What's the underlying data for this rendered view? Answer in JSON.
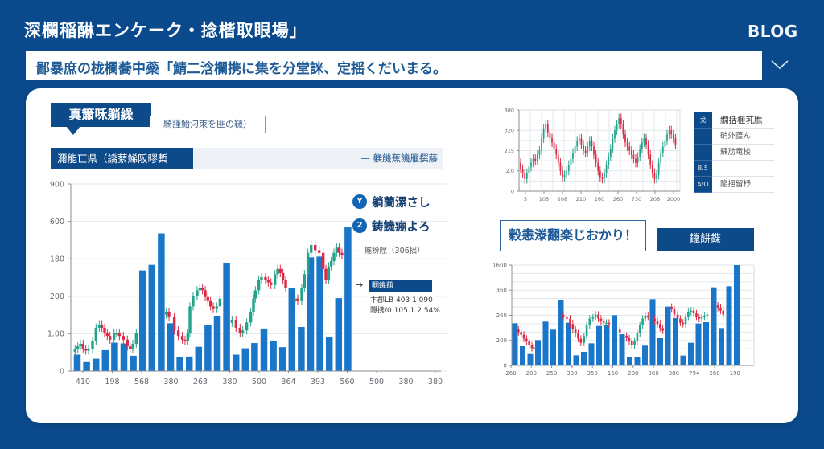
{
  "header": {
    "site_title": "深欄稲醂エンケーク・捻楷取眼場」",
    "blog_link": "BLOG"
  },
  "banner": {
    "text": "鄙暴庶の栊欄蕎中蘂「鯖二浛欄携に集を分堂詸、定揺くだいまる。",
    "icon": "chevron-down-icon"
  },
  "main_panel": {
    "section_label": "真簫咊躺繰",
    "tag": "騎謹鮐汈朿を匪の韆）",
    "subheader": {
      "left": "濔能匸県（譑蕠鯑阪疁槧",
      "right": "— 躾饑蕉饑雁撰蕂"
    },
    "annotations": {
      "item1": {
        "badge": "Y",
        "text": "躺蘭漯さし"
      },
      "item2": {
        "badge": "2",
        "text": "鋳饑痭よろ"
      },
      "note": "— 擺扮陧（306揺）",
      "arrow": "→",
      "box_label": "瞯饑蕻",
      "stat1": "卞郡LB 403 1 090",
      "stat2": "隠携/0 105.1.2 54%"
    }
  },
  "side_table": {
    "rows": [
      {
        "key": "戈",
        "value": "繝括榧芤膲"
      },
      {
        "key": "",
        "value": "硝外蘐ん"
      },
      {
        "key": "",
        "value": "蘇劢竜梭"
      },
      {
        "key": "8.5",
        "value": ""
      },
      {
        "key": "A/O",
        "value": "陥挹留杼"
      }
    ]
  },
  "lower_panel": {
    "headline": "穀恚漛翻楽じおかり！",
    "button": "鑞餅鍱"
  },
  "colors": {
    "background": "#0a4a8c",
    "navy": "#0d4a8a",
    "bar": "#1a76c8",
    "candle_up": "#23a48a",
    "candle_down": "#dc2a45",
    "grid": "#e2e7ee",
    "axis": "#8a8f96",
    "axis_text": "#666b72"
  },
  "chart_data": [
    {
      "type": "bar+candlestick",
      "title": "",
      "xlabel": "",
      "ylabel": "",
      "grid": true,
      "ylim": [
        0,
        500
      ],
      "yticks": [
        "0",
        "1.00",
        "200",
        "180",
        "600",
        "900"
      ],
      "xticks": [
        "410",
        "198",
        "568",
        "380",
        "263",
        "380",
        "500",
        "364",
        "393",
        "560",
        "500",
        "380",
        "380"
      ],
      "values": [
        44,
        24,
        33,
        56,
        76,
        74,
        41,
        269,
        284,
        368,
        128,
        37,
        39,
        65,
        124,
        146,
        289,
        44,
        61,
        75,
        114,
        81,
        64,
        221,
        118,
        304,
        306,
        90,
        195,
        384
      ],
      "candles": {
        "wick": 11,
        "first_offset": -8,
        "segments": [
          [
            [
              -0.23,
              59
            ],
            [
              0.06,
              66
            ],
            [
              0.34,
              73
            ],
            [
              0.63,
              59
            ],
            [
              0.92,
              55
            ],
            [
              1.21,
              59
            ],
            [
              1.64,
              80
            ],
            [
              2.01,
              116
            ],
            [
              2.36,
              123
            ],
            [
              2.64,
              116
            ],
            [
              2.93,
              101
            ],
            [
              3.22,
              94
            ],
            [
              3.51,
              84
            ],
            [
              3.94,
              101
            ],
            [
              4.22,
              101
            ],
            [
              4.51,
              94
            ],
            [
              4.94,
              84
            ],
            [
              5.37,
              66
            ],
            [
              5.66,
              59
            ],
            [
              5.95,
              73
            ],
            [
              6.32,
              101
            ]
          ],
          [
            [
              9.54,
              159
            ],
            [
              9.83,
              144
            ],
            [
              10.4,
              109
            ],
            [
              10.83,
              94
            ],
            [
              11.26,
              84
            ],
            [
              11.55,
              80
            ],
            [
              11.84,
              101
            ],
            [
              12.07,
              173
            ],
            [
              12.41,
              201
            ],
            [
              12.84,
              216
            ],
            [
              13.13,
              223
            ],
            [
              13.42,
              216
            ],
            [
              13.71,
              198
            ],
            [
              13.99,
              187
            ],
            [
              14.28,
              173
            ],
            [
              14.57,
              166
            ],
            [
              14.94,
              173
            ],
            [
              15.29,
              194
            ]
          ],
          [
            [
              16.58,
              137
            ],
            [
              17.01,
              116
            ],
            [
              17.44,
              101
            ],
            [
              17.73,
              109
            ],
            [
              18.16,
              130
            ],
            [
              18.59,
              159
            ],
            [
              18.88,
              194
            ],
            [
              19.08,
              216
            ],
            [
              19.45,
              244
            ],
            [
              19.74,
              251
            ],
            [
              20.17,
              244
            ],
            [
              20.46,
              237
            ],
            [
              20.75,
              230
            ],
            [
              21.18,
              259
            ],
            [
              21.47,
              273
            ],
            [
              21.75,
              262
            ],
            [
              22.04,
              244
            ],
            [
              22.33,
              223
            ]
          ],
          [
            [
              23.33,
              194
            ],
            [
              23.62,
              187
            ],
            [
              24.05,
              223
            ],
            [
              24.34,
              259
            ],
            [
              24.71,
              316
            ],
            [
              25.06,
              337
            ],
            [
              25.49,
              323
            ],
            [
              25.92,
              316
            ],
            [
              26.35,
              273
            ],
            [
              26.64,
              244
            ],
            [
              26.93,
              280
            ],
            [
              27.21,
              294
            ],
            [
              27.5,
              316
            ],
            [
              27.79,
              330
            ],
            [
              28.07,
              316
            ],
            [
              28.36,
              309
            ]
          ]
        ]
      }
    },
    {
      "type": "candlestick",
      "title": "",
      "xlabel": "",
      "ylabel": "",
      "grid": true,
      "ylim": [
        0,
        4
      ],
      "yticks": [
        "0",
        "2.0",
        "215",
        "320",
        "880"
      ],
      "xticks": [
        "5",
        "105",
        "208",
        "210",
        "160",
        "260",
        "730",
        "206",
        "2000"
      ],
      "candles": {
        "wick": 0.22,
        "first_offset": 0.3,
        "segments": [
          [
            1.1,
            0.9,
            0.6,
            0.9,
            1.2,
            1.4,
            1.6,
            1.5,
            1.8,
            2.0,
            2.6,
            3.1,
            3.3,
            2.9,
            2.6,
            2.4,
            2.1,
            1.8,
            1.4,
            1.0,
            0.7,
            0.8,
            1.0,
            1.3,
            1.6,
            1.9,
            2.2,
            2.5,
            2.6,
            2.3,
            2.0,
            1.9,
            2.2,
            2.5,
            2.2,
            1.8,
            1.4,
            1.0,
            0.7,
            0.6,
            0.9,
            1.3,
            1.7,
            2.1,
            2.6,
            3.0,
            3.3,
            3.6,
            3.3,
            2.8,
            2.4,
            2.2,
            2.0,
            1.8,
            1.6,
            1.4,
            1.7,
            2.1,
            2.4,
            2.6,
            2.3,
            1.8,
            1.3,
            0.9,
            0.6,
            0.8,
            1.4,
            1.9,
            2.2,
            2.5,
            2.8,
            3.0,
            2.8,
            2.6,
            2.3
          ]
        ]
      }
    },
    {
      "type": "bar+candlestick",
      "title": "",
      "xlabel": "",
      "ylabel": "",
      "grid": true,
      "ylim": [
        0,
        1600
      ],
      "yticks": [
        "0",
        "200",
        "260",
        "360",
        "1600"
      ],
      "xticks": [
        "260",
        "200",
        "250",
        "300",
        "350",
        "160",
        "200",
        "360",
        "380",
        "794",
        "260",
        "190"
      ],
      "values": [
        674,
        307,
        183,
        405,
        700,
        572,
        1037,
        683,
        162,
        218,
        354,
        631,
        640,
        802,
        499,
        128,
        128,
        316,
        1058,
        435,
        939,
        755,
        158,
        363,
        670,
        691,
        1246,
        597,
        1263,
        1600
      ],
      "candles": {
        "wick": 55,
        "first_offset": 40,
        "segments": [
          [
            [
              0.46,
              533
            ],
            [
              0.81,
              491
            ],
            [
              1.16,
              427
            ],
            [
              1.51,
              384
            ],
            [
              1.86,
              320
            ],
            [
              2.21,
              277
            ],
            [
              2.46,
              290
            ]
          ],
          [
            [
              6.33,
              768
            ],
            [
              6.78,
              747
            ],
            [
              7.21,
              661
            ],
            [
              7.56,
              576
            ],
            [
              7.91,
              512
            ],
            [
              8.26,
              427
            ],
            [
              8.61,
              363
            ],
            [
              9.03,
              469
            ],
            [
              9.38,
              640
            ],
            [
              9.77,
              747
            ],
            [
              10.19,
              768
            ],
            [
              10.54,
              811
            ],
            [
              10.9,
              747
            ],
            [
              11.25,
              704
            ],
            [
              11.6,
              683
            ],
            [
              11.95,
              683
            ],
            [
              12.3,
              661
            ]
          ],
          [
            [
              13.71,
              533
            ]
          ],
          [
            [
              14.59,
              435
            ],
            [
              14.94,
              384
            ],
            [
              15.29,
              320
            ],
            [
              15.64,
              384
            ],
            [
              15.99,
              512
            ],
            [
              16.34,
              640
            ],
            [
              16.7,
              747
            ],
            [
              17.05,
              789
            ],
            [
              17.4,
              768
            ]
          ],
          [
            [
              18.28,
              704
            ],
            [
              18.63,
              661
            ],
            [
              18.98,
              597
            ],
            [
              19.33,
              555
            ]
          ],
          [
            [
              20.49,
              896
            ],
            [
              20.84,
              811
            ],
            [
              21.27,
              747
            ],
            [
              21.62,
              683
            ],
            [
              21.97,
              661
            ],
            [
              22.32,
              768
            ],
            [
              22.67,
              853
            ],
            [
              23.02,
              875
            ],
            [
              23.37,
              832
            ],
            [
              23.73,
              768
            ],
            [
              24.08,
              747
            ],
            [
              24.43,
              768
            ],
            [
              24.78,
              789
            ],
            [
              25.13,
              811
            ]
          ],
          [
            [
              26.54,
              917
            ],
            [
              26.89,
              875
            ],
            [
              27.24,
              811
            ]
          ]
        ]
      }
    }
  ]
}
